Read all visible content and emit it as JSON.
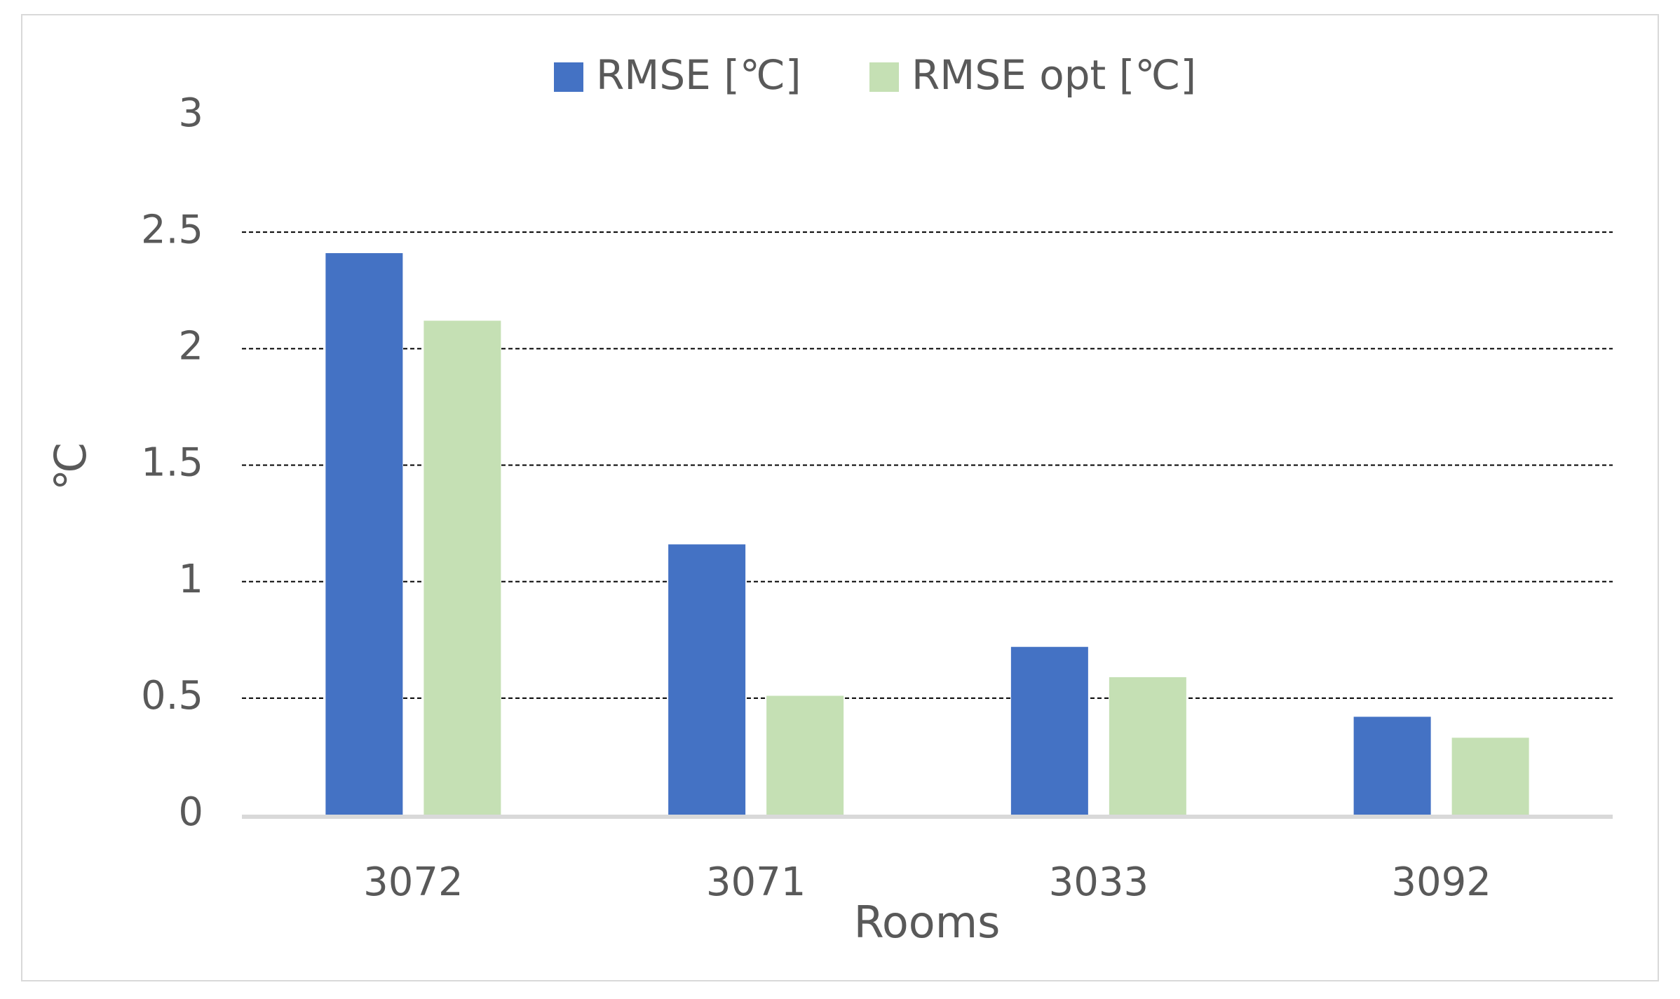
{
  "chart_data": {
    "type": "bar",
    "title": "",
    "xlabel": "Rooms",
    "ylabel": "℃",
    "categories": [
      "3072",
      "3071",
      "3033",
      "3092"
    ],
    "series": [
      {
        "name": "RMSE [℃]",
        "color": "#4472c4",
        "values": [
          2.41,
          1.16,
          0.72,
          0.42
        ]
      },
      {
        "name": "RMSE opt [℃]",
        "color": "#c5e0b4",
        "values": [
          2.12,
          0.51,
          0.59,
          0.33
        ]
      }
    ],
    "ylim": [
      0,
      3
    ],
    "yticks": [
      "0",
      "0.5",
      "1",
      "1.5",
      "2",
      "2.5",
      "3"
    ],
    "grid": true,
    "legend_position": "top-center"
  }
}
